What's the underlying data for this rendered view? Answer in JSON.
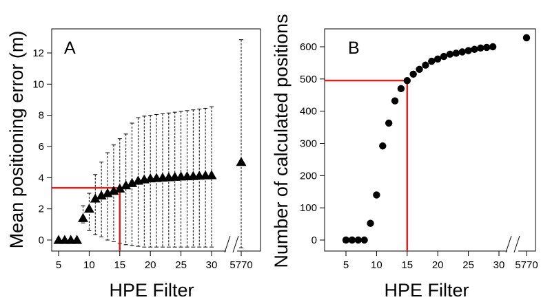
{
  "colors": {
    "ink": "#000000",
    "threshold": "#e0201b",
    "background": "#ffffff"
  },
  "chart_data": [
    {
      "type": "scatter",
      "panel_label": "A",
      "marker": "triangle",
      "xlabel": "HPE Filter",
      "ylabel": "Mean positioning error (m)",
      "xlim": [
        4,
        31
      ],
      "ylim": [
        -0.5,
        13.5
      ],
      "xticks": [
        5,
        10,
        15,
        20,
        25,
        30
      ],
      "yticks": [
        0,
        2,
        4,
        6,
        8,
        10,
        12
      ],
      "extra_tick_label": "5770",
      "x": [
        5,
        6,
        7,
        8,
        9,
        10,
        11,
        12,
        13,
        14,
        15,
        16,
        17,
        18,
        19,
        20,
        21,
        22,
        23,
        24,
        25,
        26,
        27,
        28,
        29,
        30
      ],
      "y": [
        0,
        0,
        0,
        0,
        1.4,
        2.0,
        2.65,
        2.85,
        3.0,
        3.15,
        3.3,
        3.5,
        3.65,
        3.8,
        3.88,
        3.95,
        3.97,
        4.0,
        4.02,
        4.05,
        4.07,
        4.08,
        4.1,
        4.12,
        4.14,
        4.15
      ],
      "err_low": [
        null,
        null,
        null,
        null,
        1.1,
        0.6,
        0.35,
        0.2,
        0.0,
        -0.1,
        -0.2,
        -0.3,
        -0.35,
        -0.4,
        -0.45,
        -0.45,
        -0.45,
        -0.45,
        -0.45,
        -0.45,
        -0.45,
        -0.45,
        -0.45,
        -0.45,
        -0.45,
        -0.45
      ],
      "err_high": [
        null,
        null,
        null,
        null,
        2.2,
        3.0,
        4.2,
        5.0,
        5.6,
        6.1,
        6.5,
        6.8,
        7.5,
        7.85,
        7.95,
        8.0,
        8.05,
        8.1,
        8.15,
        8.2,
        8.25,
        8.3,
        8.35,
        8.4,
        8.45,
        8.55
      ],
      "extra_point": {
        "label": "5770",
        "y": 5.0,
        "err_low": -0.5,
        "err_high": 12.85
      },
      "threshold": {
        "x": 15,
        "y": 3.35
      }
    },
    {
      "type": "scatter",
      "panel_label": "B",
      "marker": "circle",
      "xlabel": "HPE Filter",
      "ylabel": "Number of calculated positions",
      "xlim": [
        4,
        31
      ],
      "ylim": [
        -20,
        660
      ],
      "xticks": [
        5,
        10,
        15,
        20,
        25,
        30
      ],
      "yticks": [
        0,
        100,
        200,
        300,
        400,
        500,
        600
      ],
      "extra_tick_label": "5770",
      "x": [
        5,
        6,
        7,
        8,
        9,
        10,
        11,
        12,
        13,
        14,
        15,
        16,
        17,
        18,
        19,
        20,
        21,
        22,
        23,
        24,
        25,
        26,
        27,
        28,
        29
      ],
      "y": [
        0,
        0,
        0,
        0,
        52,
        140,
        292,
        363,
        432,
        470,
        495,
        515,
        530,
        543,
        555,
        562,
        570,
        577,
        580,
        584,
        588,
        592,
        596,
        598,
        600
      ],
      "extra_point": {
        "label": "5770",
        "y": 628
      },
      "threshold": {
        "x": 15,
        "y": 495
      }
    }
  ]
}
